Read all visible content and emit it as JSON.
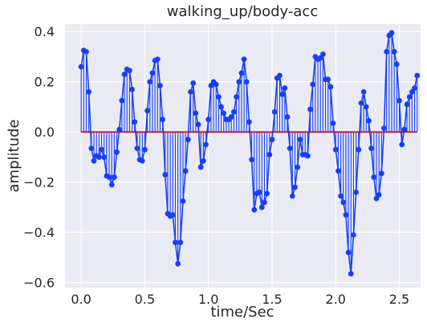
{
  "chart_data": {
    "type": "stem",
    "title": "walking_up/body-acc",
    "xlabel": "time/Sec",
    "ylabel": "amplitude",
    "xlim": [
      -0.127,
      2.667
    ],
    "ylim": [
      -0.62,
      0.43
    ],
    "grid": true,
    "legend": "none",
    "x_step": 0.02,
    "baseline": 0.0,
    "colors": {
      "stem": "#1740f5",
      "baseline": "#c0001f",
      "plot_bg": "#eaeaf2",
      "grid": "#ffffff"
    },
    "x_ticks": [
      0.0,
      0.5,
      1.0,
      1.5,
      2.0,
      2.5
    ],
    "x_tick_labels": [
      "0.0",
      "0.5",
      "1.0",
      "1.5",
      "2.0",
      "2.5"
    ],
    "y_ticks": [
      -0.6,
      -0.4,
      -0.2,
      0.0,
      0.2,
      0.4
    ],
    "y_tick_labels": [
      "−0.6",
      "−0.4",
      "−0.2",
      "0.0",
      "0.2",
      "0.4"
    ],
    "series": [
      {
        "values": [
          0.26,
          0.325,
          0.32,
          0.16,
          -0.065,
          -0.115,
          -0.095,
          -0.1,
          -0.07,
          -0.1,
          -0.175,
          -0.18,
          -0.21,
          -0.18,
          -0.08,
          0.01,
          0.125,
          0.23,
          0.25,
          0.245,
          0.17,
          0.04,
          -0.065,
          -0.11,
          -0.115,
          -0.07,
          0.085,
          0.2,
          0.235,
          0.285,
          0.29,
          0.185,
          0.05,
          -0.17,
          -0.325,
          -0.335,
          -0.33,
          -0.44,
          -0.525,
          -0.44,
          -0.275,
          -0.155,
          -0.03,
          0.16,
          0.195,
          0.075,
          0.03,
          -0.14,
          -0.115,
          -0.05,
          0.05,
          0.185,
          0.2,
          0.19,
          0.14,
          0.1,
          0.075,
          0.05,
          0.05,
          0.06,
          0.08,
          0.14,
          0.2,
          0.235,
          0.29,
          0.2,
          0.04,
          -0.11,
          -0.31,
          -0.245,
          -0.24,
          -0.3,
          -0.28,
          -0.245,
          -0.09,
          -0.03,
          0.08,
          0.215,
          0.225,
          0.15,
          0.175,
          0.06,
          -0.065,
          -0.255,
          -0.22,
          -0.14,
          -0.03,
          -0.09,
          -0.09,
          -0.095,
          0.09,
          0.19,
          0.3,
          0.29,
          0.295,
          0.31,
          0.21,
          0.21,
          0.18,
          0.035,
          -0.07,
          -0.155,
          -0.255,
          -0.28,
          -0.33,
          -0.48,
          -0.565,
          -0.41,
          -0.24,
          -0.07,
          0.115,
          0.16,
          0.1,
          0.045,
          -0.065,
          -0.18,
          -0.265,
          -0.25,
          -0.165,
          0.015,
          0.32,
          0.385,
          0.395,
          0.32,
          0.27,
          0.125,
          -0.05,
          0.01,
          0.11,
          0.14,
          0.16,
          0.175,
          0.225
        ]
      }
    ]
  }
}
